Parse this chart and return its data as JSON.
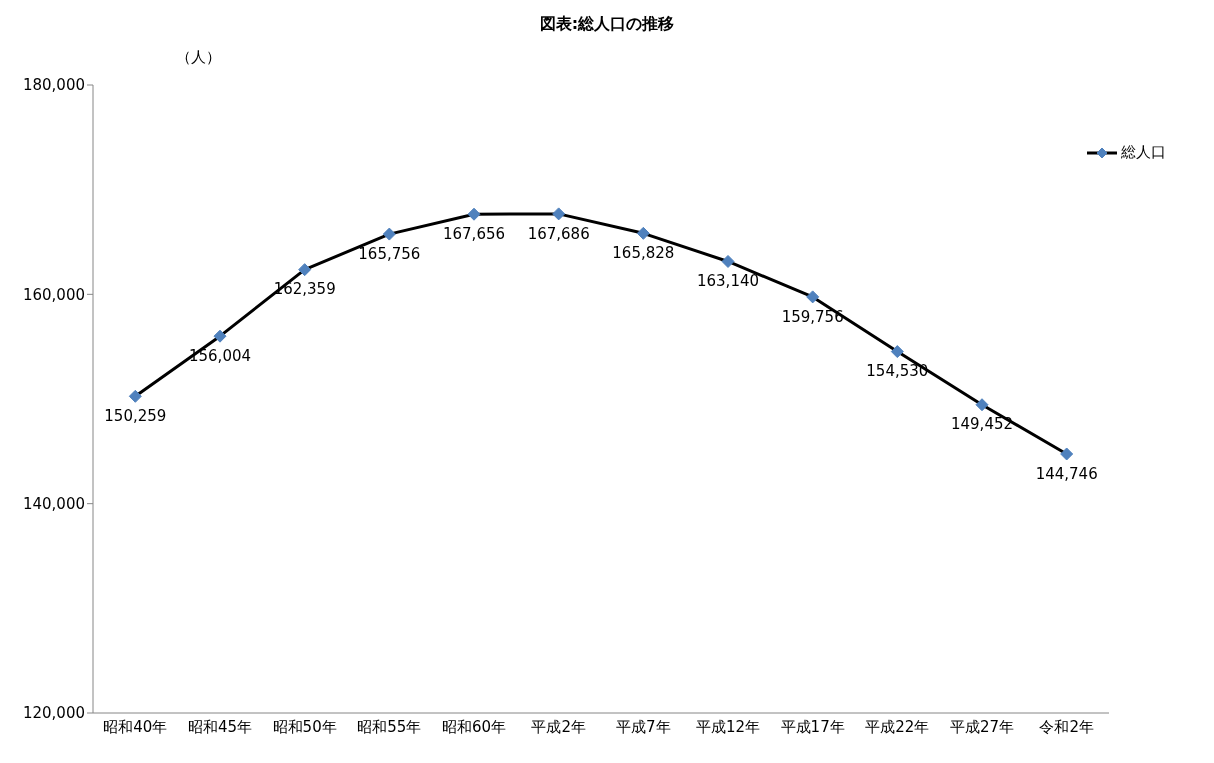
{
  "chart_data": {
    "type": "line",
    "title": "図表:総人口の推移",
    "ylabel": "（人）",
    "categories": [
      "昭和40年",
      "昭和45年",
      "昭和50年",
      "昭和55年",
      "昭和60年",
      "平成2年",
      "平成7年",
      "平成12年",
      "平成17年",
      "平成22年",
      "平成27年",
      "令和2年"
    ],
    "series": [
      {
        "name": "総人口",
        "color": "#000000",
        "values": [
          150259,
          156004,
          162359,
          165756,
          167656,
          167686,
          165828,
          163140,
          159756,
          154530,
          149452,
          144746
        ],
        "value_labels": [
          "150,259",
          "156,004",
          "162,359",
          "165,756",
          "167,656",
          "167,686",
          "165,828",
          "163,140",
          "159,756",
          "154,530",
          "149,452",
          "144,746"
        ]
      }
    ],
    "ylim": [
      120000,
      180000
    ],
    "yticks": [
      {
        "value": 120000,
        "label": "120,000"
      },
      {
        "value": 140000,
        "label": "140,000"
      },
      {
        "value": 160000,
        "label": "160,000"
      },
      {
        "value": 180000,
        "label": "180,000"
      }
    ],
    "grid": false,
    "legend": "top right",
    "marker": "diamond",
    "line_style": "solid"
  }
}
